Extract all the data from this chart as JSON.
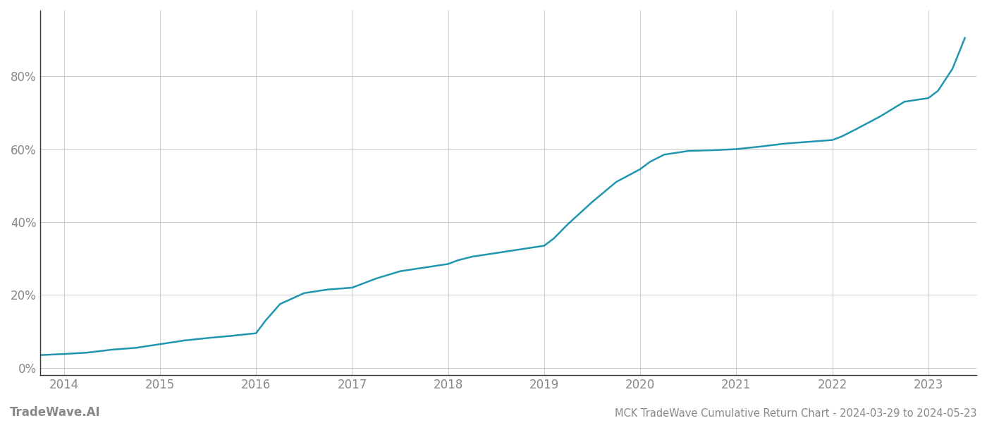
{
  "title": "MCK TradeWave Cumulative Return Chart - 2024-03-29 to 2024-05-23",
  "watermark": "TradeWave.AI",
  "line_color": "#2196b0",
  "background_color": "#ffffff",
  "grid_color": "#cccccc",
  "x_years": [
    2014,
    2015,
    2016,
    2017,
    2018,
    2019,
    2020,
    2021,
    2022,
    2023
  ],
  "x_values": [
    2013.75,
    2014.0,
    2014.25,
    2014.5,
    2014.75,
    2015.0,
    2015.25,
    2015.5,
    2015.75,
    2016.0,
    2016.1,
    2016.25,
    2016.5,
    2016.75,
    2017.0,
    2017.25,
    2017.5,
    2017.75,
    2018.0,
    2018.1,
    2018.25,
    2018.5,
    2018.75,
    2019.0,
    2019.1,
    2019.25,
    2019.5,
    2019.75,
    2020.0,
    2020.1,
    2020.25,
    2020.5,
    2020.75,
    2021.0,
    2021.25,
    2021.5,
    2021.75,
    2022.0,
    2022.1,
    2022.25,
    2022.5,
    2022.75,
    2023.0,
    2023.1,
    2023.25,
    2023.38
  ],
  "y_values": [
    0.035,
    0.038,
    0.042,
    0.05,
    0.055,
    0.065,
    0.075,
    0.082,
    0.088,
    0.095,
    0.13,
    0.175,
    0.205,
    0.215,
    0.22,
    0.245,
    0.265,
    0.275,
    0.285,
    0.295,
    0.305,
    0.315,
    0.325,
    0.335,
    0.355,
    0.395,
    0.455,
    0.51,
    0.545,
    0.565,
    0.585,
    0.595,
    0.597,
    0.6,
    0.607,
    0.615,
    0.62,
    0.625,
    0.635,
    0.655,
    0.69,
    0.73,
    0.74,
    0.76,
    0.82,
    0.905
  ],
  "yticks": [
    0.0,
    0.2,
    0.4,
    0.6,
    0.8
  ],
  "ytick_labels": [
    "0%",
    "20%",
    "40%",
    "60%",
    "80%"
  ],
  "ylim": [
    -0.02,
    0.98
  ],
  "xlim": [
    2013.75,
    2023.5
  ],
  "title_fontsize": 10.5,
  "watermark_fontsize": 12,
  "tick_fontsize": 12,
  "tick_color": "#888888",
  "spine_color": "#333333",
  "line_width": 1.8
}
